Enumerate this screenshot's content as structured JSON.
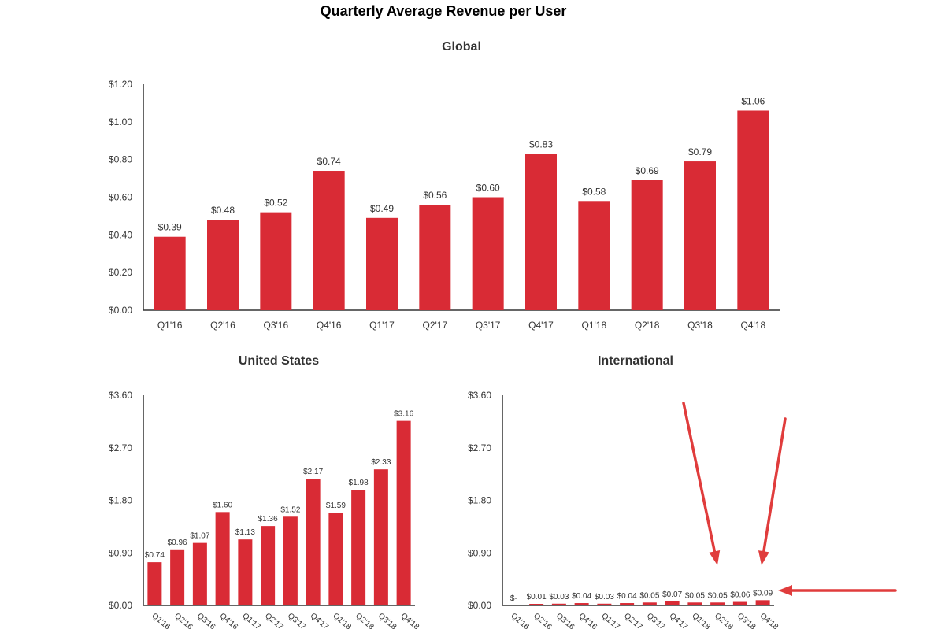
{
  "page": {
    "title": "Quarterly Average Revenue per User"
  },
  "colors": {
    "bar": "#d92b35",
    "annotation_arrow": "#e03c3c"
  },
  "chart_data": [
    {
      "type": "bar",
      "title": "Global",
      "categories": [
        "Q1'16",
        "Q2'16",
        "Q3'16",
        "Q4'16",
        "Q1'17",
        "Q2'17",
        "Q3'17",
        "Q4'17",
        "Q1'18",
        "Q2'18",
        "Q3'18",
        "Q4'18"
      ],
      "values": [
        0.39,
        0.48,
        0.52,
        0.74,
        0.49,
        0.56,
        0.6,
        0.83,
        0.58,
        0.69,
        0.79,
        1.06
      ],
      "value_labels": [
        "$0.39",
        "$0.48",
        "$0.52",
        "$0.74",
        "$0.49",
        "$0.56",
        "$0.60",
        "$0.83",
        "$0.58",
        "$0.69",
        "$0.79",
        "$1.06"
      ],
      "ylim": [
        0,
        1.2
      ],
      "yticks": [
        0,
        0.2,
        0.4,
        0.6,
        0.8,
        1.0,
        1.2
      ],
      "ytick_labels": [
        "$0.00",
        "$0.20",
        "$0.40",
        "$0.60",
        "$0.80",
        "$1.00",
        "$1.20"
      ],
      "grid": false,
      "xlabel_rotation": 0
    },
    {
      "type": "bar",
      "title": "United States",
      "categories": [
        "Q1'16",
        "Q2'16",
        "Q3'16",
        "Q4'16",
        "Q1'17",
        "Q2'17",
        "Q3'17",
        "Q4'17",
        "Q1'18",
        "Q2'18",
        "Q3'18",
        "Q4'18"
      ],
      "values": [
        0.74,
        0.96,
        1.07,
        1.6,
        1.13,
        1.36,
        1.52,
        2.17,
        1.59,
        1.98,
        2.33,
        3.16
      ],
      "value_labels": [
        "$0.74",
        "$0.96",
        "$1.07",
        "$1.60",
        "$1.13",
        "$1.36",
        "$1.52",
        "$2.17",
        "$1.59",
        "$1.98",
        "$2.33",
        "$3.16"
      ],
      "ylim": [
        0,
        3.6
      ],
      "yticks": [
        0,
        0.9,
        1.8,
        2.7,
        3.6
      ],
      "ytick_labels": [
        "$0.00",
        "$0.90",
        "$1.80",
        "$2.70",
        "$3.60"
      ],
      "grid": false,
      "xlabel_rotation": 40
    },
    {
      "type": "bar",
      "title": "International",
      "categories": [
        "Q1'16",
        "Q2'16",
        "Q3'16",
        "Q4'16",
        "Q1'17",
        "Q2'17",
        "Q3'17",
        "Q4'17",
        "Q1'18",
        "Q2'18",
        "Q3'18",
        "Q4'18"
      ],
      "values": [
        0.0,
        0.01,
        0.03,
        0.04,
        0.03,
        0.04,
        0.05,
        0.07,
        0.05,
        0.05,
        0.06,
        0.09
      ],
      "value_labels": [
        "$-",
        "$0.01",
        "$0.03",
        "$0.04",
        "$0.03",
        "$0.04",
        "$0.05",
        "$0.07",
        "$0.05",
        "$0.05",
        "$0.06",
        "$0.09"
      ],
      "ylim": [
        0,
        3.6
      ],
      "yticks": [
        0,
        0.9,
        1.8,
        2.7,
        3.6
      ],
      "ytick_labels": [
        "$0.00",
        "$0.90",
        "$1.80",
        "$2.70",
        "$3.60"
      ],
      "grid": false,
      "xlabel_rotation": 40
    }
  ]
}
